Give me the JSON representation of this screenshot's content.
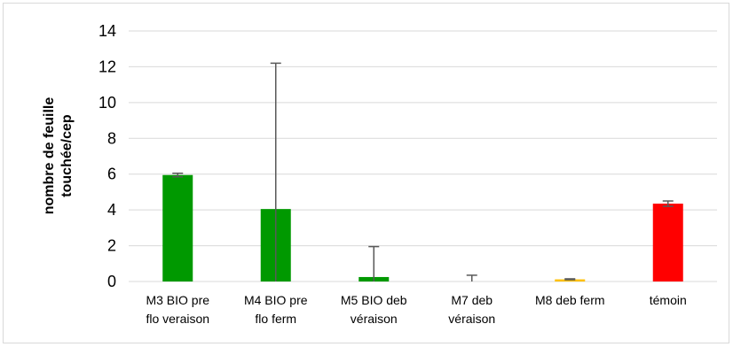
{
  "chart_data": {
    "type": "bar",
    "title": "",
    "ylabel_lines": [
      "nombre de feuille",
      "touchée/cep"
    ],
    "categories": [
      [
        "M3 BIO pre",
        "flo veraison"
      ],
      [
        "M4 BIO pre",
        "flo ferm"
      ],
      [
        "M5 BIO deb",
        "véraison"
      ],
      [
        "M7 deb",
        "véraison"
      ],
      [
        "M8 deb ferm"
      ],
      [
        "témoin"
      ]
    ],
    "values": [
      5.95,
      4.05,
      0.25,
      0,
      0.12,
      4.35
    ],
    "error_upper": [
      6.05,
      12.2,
      1.95,
      0.35,
      0.15,
      4.5
    ],
    "error_lower": [
      5.85,
      0,
      0,
      0,
      0.1,
      4.2
    ],
    "colors": [
      "#009900",
      "#009900",
      "#009900",
      "#009900",
      "#ffc000",
      "#ff0000"
    ],
    "ylim": [
      0,
      14
    ],
    "yticks": [
      0,
      2,
      4,
      6,
      8,
      10,
      12,
      14
    ],
    "grid": true
  }
}
